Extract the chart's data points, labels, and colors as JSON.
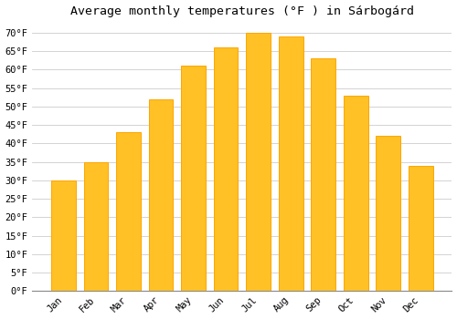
{
  "title": "Average monthly temperatures (°F ) in Sárbogárd",
  "months": [
    "Jan",
    "Feb",
    "Mar",
    "Apr",
    "May",
    "Jun",
    "Jul",
    "Aug",
    "Sep",
    "Oct",
    "Nov",
    "Dec"
  ],
  "values": [
    30,
    35,
    43,
    52,
    61,
    66,
    70,
    69,
    63,
    53,
    42,
    34
  ],
  "bar_color": "#FFC125",
  "bar_edge_color": "#FFA500",
  "background_color": "#ffffff",
  "grid_color": "#cccccc",
  "ylim": [
    0,
    73
  ],
  "yticks": [
    0,
    5,
    10,
    15,
    20,
    25,
    30,
    35,
    40,
    45,
    50,
    55,
    60,
    65,
    70
  ],
  "title_fontsize": 9.5,
  "tick_fontsize": 7.5,
  "font_family": "monospace"
}
